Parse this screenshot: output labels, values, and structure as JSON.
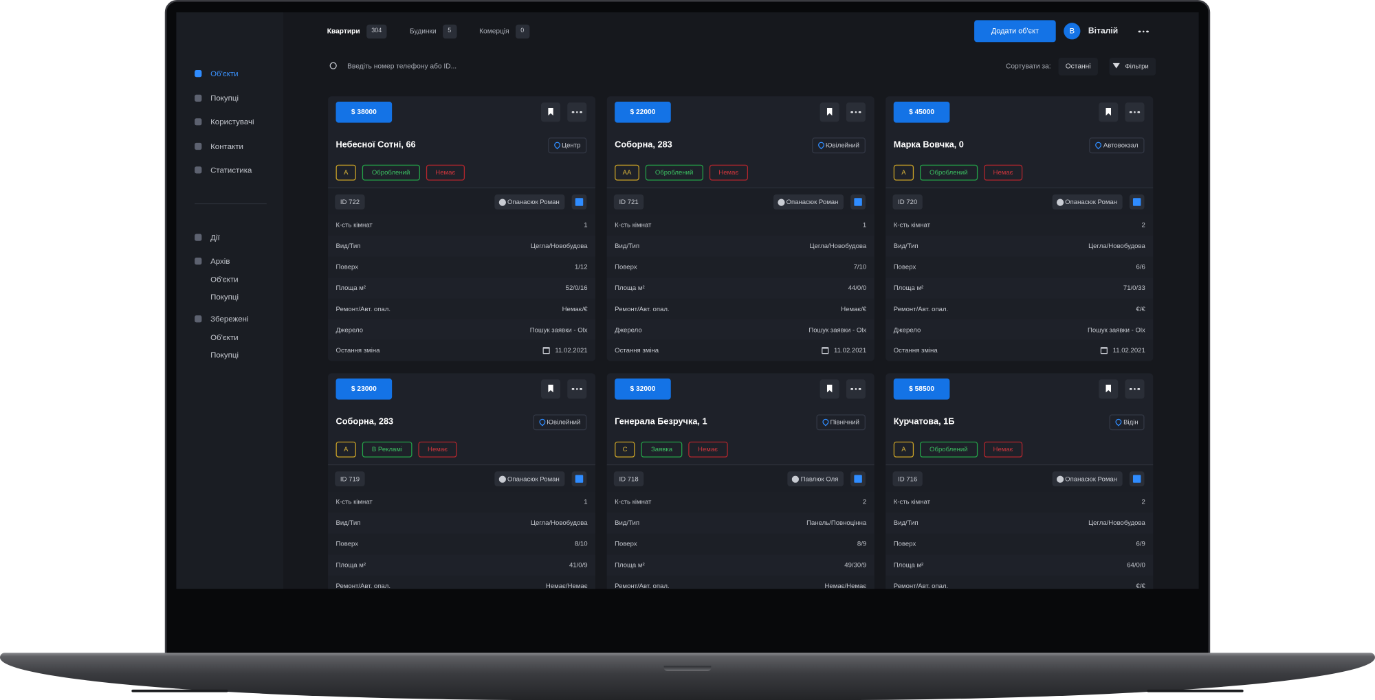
{
  "header": {
    "tabs": [
      {
        "label": "Квартири",
        "count": 304
      },
      {
        "label": "Будинки",
        "count": 5
      },
      {
        "label": "Комерція",
        "count": 0
      }
    ],
    "add_button": "Додати об'єкт",
    "user": {
      "initial": "В",
      "name": "Віталій"
    }
  },
  "search": {
    "placeholder": "Введіть номер телефону або ID...",
    "sort_label": "Сортувати за:",
    "sort_value": "Останні",
    "filters": "Фільтри"
  },
  "sidebar": {
    "items": [
      "Об'єкти",
      "Покупці",
      "Користувачі",
      "Контакти",
      "Статистика"
    ],
    "sections": [
      {
        "label": "Дії"
      },
      {
        "label": "Архів",
        "items": [
          "Об'єкти",
          "Покупці"
        ]
      },
      {
        "label": "Збережені",
        "items": [
          "Об'єкти",
          "Покупці"
        ]
      }
    ]
  },
  "field_labels": [
    "К-сть кімнат",
    "Вид/Тип",
    "Поверх",
    "Площа м²",
    "Ремонт/Авт. опал.",
    "Джерело",
    "Остання зміна"
  ],
  "cards": [
    {
      "price": "$ 38000",
      "address": "Небесної Сотні, 66",
      "district": "Центр",
      "tags": [
        "А",
        "Оброблений",
        "Немає"
      ],
      "id": "ID 722",
      "agent": "Опанасюк Роман",
      "fields": [
        "1",
        "Цегла/Новобудова",
        "1/12",
        "52/0/16",
        "Немає/€",
        "Пошук заявки - Olx",
        "11.02.2021"
      ]
    },
    {
      "price": "$ 22000",
      "address": "Соборна, 283",
      "district": "Ювілейний",
      "tags": [
        "АА",
        "Оброблений",
        "Немає"
      ],
      "id": "ID 721",
      "agent": "Опанасюк Роман",
      "fields": [
        "1",
        "Цегла/Новобудова",
        "7/10",
        "44/0/0",
        "Немає/€",
        "Пошук заявки - Olx",
        "11.02.2021"
      ]
    },
    {
      "price": "$ 45000",
      "address": "Марка Вовчка, 0",
      "district": "Автовокзал",
      "tags": [
        "А",
        "Оброблений",
        "Немає"
      ],
      "id": "ID 720",
      "agent": "Опанасюк Роман",
      "fields": [
        "2",
        "Цегла/Новобудова",
        "6/6",
        "71/0/33",
        "€/€",
        "Пошук заявки - Olx",
        "11.02.2021"
      ]
    },
    {
      "price": "$ 23000",
      "address": "Соборна, 283",
      "district": "Ювілейний",
      "tags": [
        "А",
        "В Рекламі",
        "Немає"
      ],
      "id": "ID 719",
      "agent": "Опанасюк Роман",
      "fields": [
        "1",
        "Цегла/Новобудова",
        "8/10",
        "41/0/9",
        "Немає/Немає"
      ]
    },
    {
      "price": "$ 32000",
      "address": "Генерала Безручка, 1",
      "district": "Північний",
      "tags": [
        "С",
        "Заявка",
        "Немає"
      ],
      "id": "ID 718",
      "agent": "Павлюк Оля",
      "fields": [
        "2",
        "Панель/Повноцінна",
        "8/9",
        "49/30/9",
        "Немає/Немає"
      ]
    },
    {
      "price": "$ 58500",
      "address": "Курчатова, 1Б",
      "district": "Відін",
      "tags": [
        "А",
        "Оброблений",
        "Немає"
      ],
      "id": "ID 716",
      "agent": "Опанасюк Роман",
      "fields": [
        "2",
        "Цегла/Новобудова",
        "6/9",
        "64/0/0",
        "€/€"
      ]
    }
  ]
}
